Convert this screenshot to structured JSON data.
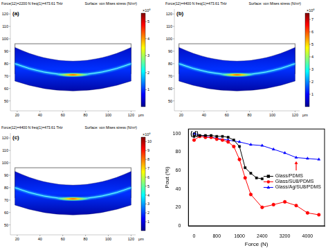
{
  "panels": [
    {
      "label": "(a)",
      "header_left": "Force(12)=2200 N freq(1)=473.61 THz",
      "header_right": "Surface: von Mises stress (N/m²)",
      "x_unit": "μm",
      "xlim": [
        14,
        124
      ],
      "xticks": [
        20,
        40,
        60,
        80,
        100,
        120
      ],
      "ylim": [
        42,
        124
      ],
      "yticks": [
        50,
        60,
        70,
        80,
        90,
        100,
        110,
        120
      ],
      "colorbar": {
        "range": [
          0,
          5.5
        ],
        "ticks": [
          1,
          2,
          3,
          4,
          5
        ],
        "multiplier": "×10⁸"
      }
    },
    {
      "label": "(b)",
      "header_left": "Force(12)=4400 N freq(1)=473.61 THz",
      "header_right": "Surface: von Mises stress (N/m²)",
      "x_unit": "μm",
      "xlim": [
        14,
        124
      ],
      "xticks": [
        20,
        40,
        60,
        80,
        100,
        120
      ],
      "ylim": [
        42,
        124
      ],
      "yticks": [
        50,
        60,
        70,
        80,
        90,
        100,
        110,
        120
      ],
      "colorbar": {
        "range": [
          0,
          7.5
        ],
        "ticks": [
          1,
          2,
          3,
          4,
          5,
          6,
          7
        ],
        "multiplier": "×10⁸"
      }
    },
    {
      "label": "(c)",
      "header_left": "Force(12)=4400 N freq(1)=473.61 THz",
      "header_right": "Surface: von Mises stress (N/m²)",
      "x_unit": "μm",
      "xlim": [
        14,
        124
      ],
      "xticks": [
        20,
        40,
        60,
        80,
        100,
        120
      ],
      "ylim": [
        42,
        124
      ],
      "yticks": [
        50,
        60,
        70,
        80,
        90,
        100,
        110,
        120
      ],
      "colorbar": {
        "range": [
          0,
          10.5
        ],
        "ticks": [
          1,
          2,
          3,
          4,
          5,
          6,
          7,
          8,
          9,
          10
        ],
        "multiplier": "×10⁸"
      }
    }
  ],
  "chart_data": {
    "type": "line",
    "title": "(d)",
    "x_label": "Force (N)",
    "y_label": "Pout (%)",
    "xlim": [
      -200,
      4600
    ],
    "xticks": [
      0,
      800,
      1600,
      2400,
      3200,
      4000
    ],
    "ylim": [
      0,
      105
    ],
    "yticks": [
      0,
      20,
      40,
      60,
      80,
      100
    ],
    "grid": false,
    "legend": "right",
    "series": [
      {
        "name": "Glass/PDMS",
        "color": "#000000",
        "marker": "square",
        "x": [
          0,
          200,
          400,
          600,
          800,
          1000,
          1200,
          1400,
          1600,
          1800,
          2000,
          2200,
          2400
        ],
        "values": [
          97,
          98,
          98,
          98,
          97,
          97,
          96,
          93,
          86,
          63,
          57,
          52,
          51
        ]
      },
      {
        "name": "Glass/SU8/PDMS",
        "color": "#ff0000",
        "marker": "circle",
        "x": [
          0,
          200,
          400,
          600,
          800,
          1000,
          1200,
          1400,
          1600,
          1800,
          2000,
          2400,
          2800,
          3200,
          3600,
          4000,
          4400
        ],
        "values": [
          93,
          97,
          96,
          96,
          94,
          93,
          91,
          86,
          72,
          52,
          34,
          20,
          23,
          26,
          22,
          14,
          12
        ]
      },
      {
        "name": "Glass/Ag/SU8/PDMS",
        "color": "#0000ff",
        "marker": "triangle",
        "x": [
          0,
          400,
          800,
          1200,
          1600,
          2000,
          2400,
          2800,
          3200,
          3600,
          4000,
          4400
        ],
        "values": [
          100,
          97,
          95,
          93,
          91,
          88,
          87,
          83,
          79,
          74,
          73,
          72
        ]
      }
    ],
    "annotations": [
      {
        "type": "arrow",
        "x": 3600,
        "y_from": 60,
        "y_to": 70,
        "color": "#ff0000"
      }
    ]
  }
}
